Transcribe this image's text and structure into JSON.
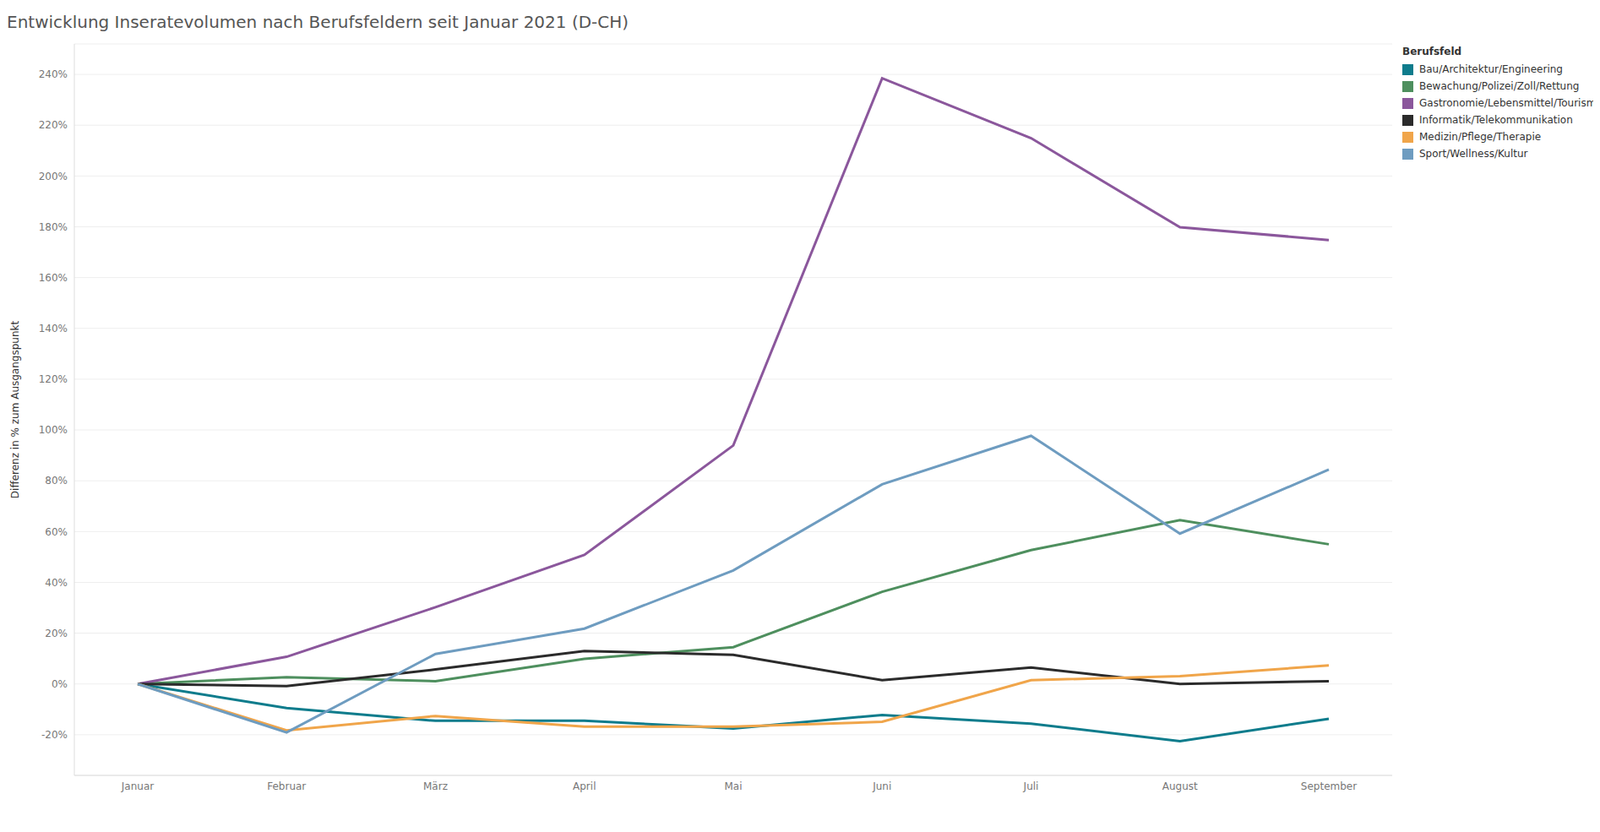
{
  "chart_data": {
    "type": "line",
    "title": "Entwicklung Inseratevolumen nach Berufsfeldern seit Januar 2021 (D-CH)",
    "y_label": "Differenz in % zum Ausgangspunkt",
    "legend_title": "Berufsfeld",
    "categories": [
      "Januar",
      "Februar",
      "März",
      "April",
      "Mai",
      "Juni",
      "Juli",
      "August",
      "September"
    ],
    "series": [
      {
        "name": "Bau/Architektur/Engineering",
        "color": "#0e7c8c",
        "values": [
          0,
          -9.5,
          -14.5,
          -14.5,
          -17.5,
          -12.2,
          -15.6,
          -22.5,
          -13.7
        ]
      },
      {
        "name": "Bewachung/Polizei/Zoll/Rettung",
        "color": "#4e8f5e",
        "values": [
          0,
          2.7,
          1.1,
          9.9,
          14.5,
          36.3,
          52.7,
          64.5,
          55
        ]
      },
      {
        "name": "Gastronomie/Lebensmittel/Tourismus",
        "color": "#8b579c",
        "values": [
          0,
          10.7,
          30.2,
          50.8,
          93.9,
          238.5,
          214.9,
          179.8,
          174.8
        ]
      },
      {
        "name": "Informatik/Telekommunikation",
        "color": "#2b2b2b",
        "values": [
          0,
          -0.8,
          5.7,
          13,
          11.5,
          1.5,
          6.5,
          0,
          1.1
        ]
      },
      {
        "name": "Medizin/Pflege/Therapie",
        "color": "#f0a54a",
        "values": [
          0,
          -18.3,
          -12.6,
          -16.8,
          -16.8,
          -14.9,
          1.5,
          3.1,
          7.3
        ]
      },
      {
        "name": "Sport/Wellness/Kultur",
        "color": "#6e9cc0",
        "values": [
          0,
          -19.1,
          11.8,
          21.8,
          44.7,
          78.6,
          97.7,
          59.2,
          84.4
        ]
      }
    ],
    "ylim": [
      -36,
      252
    ],
    "yticks": [
      {
        "value": -20,
        "label": "-20%"
      },
      {
        "value": 0,
        "label": "0%"
      },
      {
        "value": 20,
        "label": "20%"
      },
      {
        "value": 40,
        "label": "40%"
      },
      {
        "value": 60,
        "label": "60%"
      },
      {
        "value": 80,
        "label": "80%"
      },
      {
        "value": 100,
        "label": "100%"
      },
      {
        "value": 120,
        "label": "120%"
      },
      {
        "value": 140,
        "label": "140%"
      },
      {
        "value": 160,
        "label": "160%"
      },
      {
        "value": 180,
        "label": "180%"
      },
      {
        "value": 200,
        "label": "200%"
      },
      {
        "value": 220,
        "label": "220%"
      },
      {
        "value": 240,
        "label": "240%"
      }
    ],
    "grid": true,
    "legend": "upper right"
  }
}
